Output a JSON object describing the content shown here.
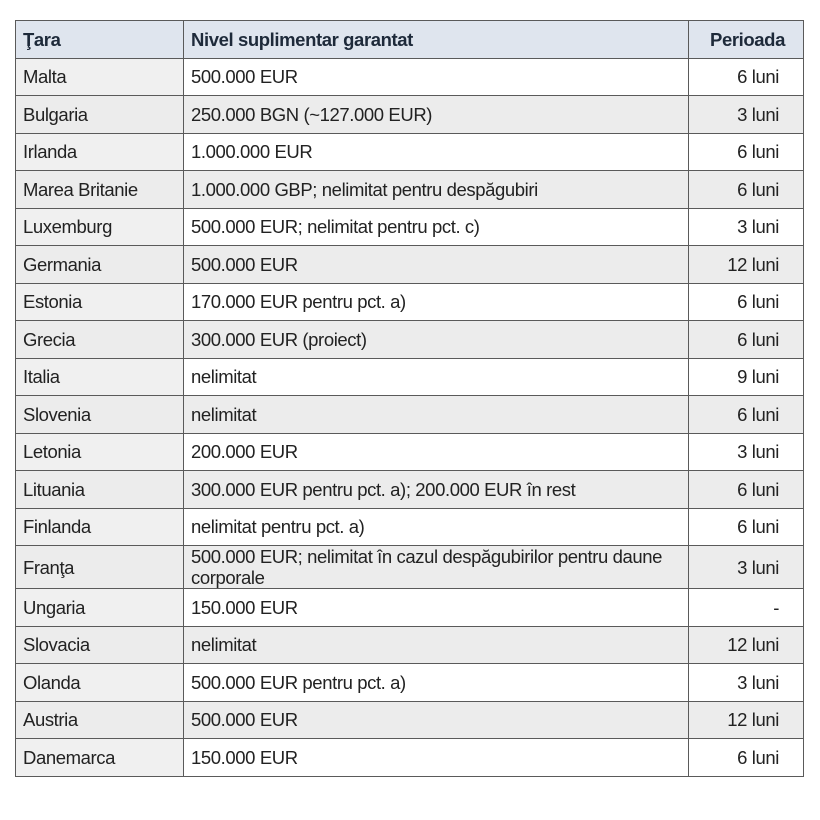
{
  "table": {
    "header": [
      "Ţara",
      "Nivel suplimentar garantat",
      "Perioada"
    ],
    "rows": [
      [
        "Malta",
        "500.000 EUR",
        "6 luni"
      ],
      [
        "Bulgaria",
        "250.000 BGN (~127.000 EUR)",
        "3 luni"
      ],
      [
        "Irlanda",
        "1.000.000 EUR",
        "6 luni"
      ],
      [
        "Marea Britanie",
        "1.000.000 GBP; nelimitat pentru despăgubiri",
        "6 luni"
      ],
      [
        "Luxemburg",
        "500.000 EUR; nelimitat pentru pct. c)",
        "3 luni"
      ],
      [
        "Germania",
        "500.000 EUR",
        "12 luni"
      ],
      [
        "Estonia",
        "170.000 EUR pentru pct. a)",
        "6 luni"
      ],
      [
        "Grecia",
        "300.000 EUR (proiect)",
        "6 luni"
      ],
      [
        "Italia",
        "nelimitat",
        "9 luni"
      ],
      [
        "Slovenia",
        "nelimitat",
        "6 luni"
      ],
      [
        "Letonia",
        "200.000 EUR",
        "3 luni"
      ],
      [
        "Lituania",
        "300.000 EUR pentru pct. a); 200.000 EUR în rest",
        "6 luni"
      ],
      [
        "Finlanda",
        "nelimitat pentru pct. a)",
        "6 luni"
      ],
      [
        "Franţa",
        "500.000 EUR; nelimitat în cazul despăgubirilor pentru daune corporale",
        "3 luni"
      ],
      [
        "Ungaria",
        "150.000 EUR",
        "-"
      ],
      [
        "Slovacia",
        "nelimitat",
        "12 luni"
      ],
      [
        "Olanda",
        "500.000 EUR pentru pct. a)",
        "3 luni"
      ],
      [
        "Austria",
        "500.000 EUR",
        "12 luni"
      ],
      [
        "Danemarca",
        "150.000 EUR",
        "6 luni"
      ]
    ]
  }
}
